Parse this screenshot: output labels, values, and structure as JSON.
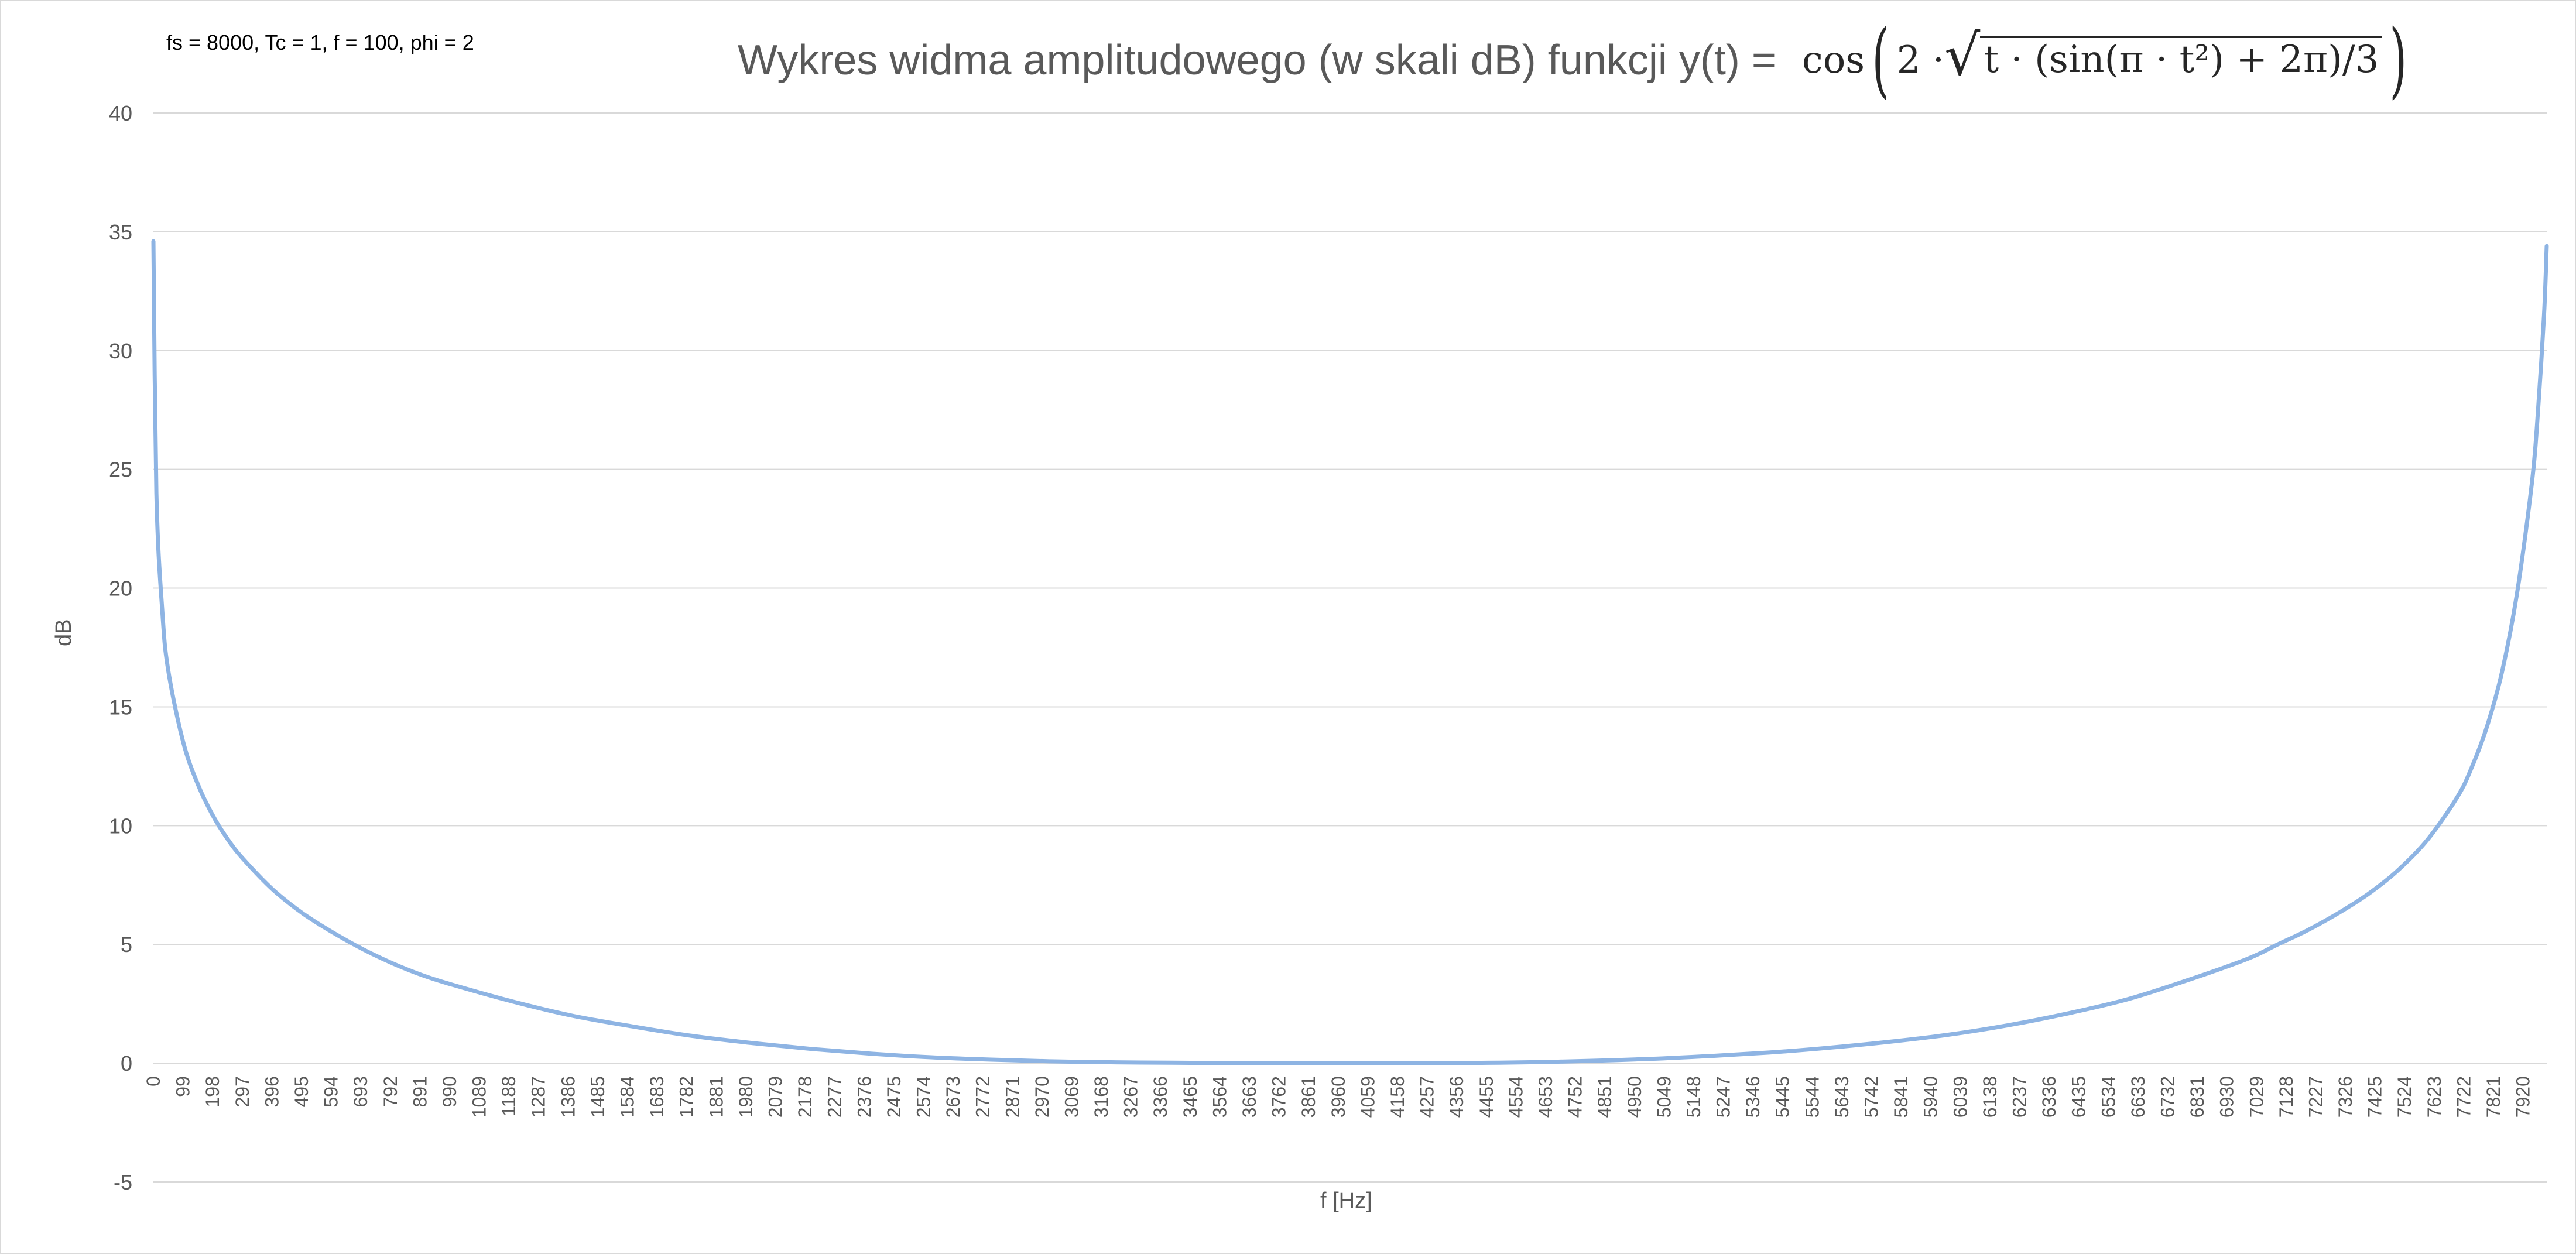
{
  "chart_data": {
    "type": "line",
    "title": "Wykres widma amplitudowego (w skali dB) funkcji y(t) =",
    "formula": {
      "func": "cos",
      "lead": "2 ·",
      "radicand": "t · (sin(π · t²) + 2π)/3"
    },
    "annotation": "fs = 8000, Tc = 1, f = 100, phi = 2",
    "xlabel": "f [Hz]",
    "ylabel": "dB",
    "ylim": [
      -5,
      40
    ],
    "yticks": [
      -5,
      0,
      5,
      10,
      15,
      20,
      25,
      30,
      35,
      40
    ],
    "xlim": [
      0,
      7999
    ],
    "x_ticks": [
      0,
      99,
      198,
      297,
      396,
      495,
      594,
      693,
      792,
      891,
      990,
      1089,
      1188,
      1287,
      1386,
      1485,
      1584,
      1683,
      1782,
      1881,
      1980,
      2079,
      2178,
      2277,
      2376,
      2475,
      2574,
      2673,
      2772,
      2871,
      2970,
      3069,
      3168,
      3267,
      3366,
      3465,
      3564,
      3663,
      3762,
      3861,
      3960,
      4059,
      4158,
      4257,
      4356,
      4455,
      4554,
      4653,
      4752,
      4851,
      4950,
      5049,
      5148,
      5247,
      5346,
      5445,
      5544,
      5643,
      5742,
      5841,
      5940,
      6039,
      6138,
      6237,
      6336,
      6435,
      6534,
      6633,
      6732,
      6831,
      6930,
      7029,
      7128,
      7227,
      7326,
      7425,
      7524,
      7623,
      7722,
      7821,
      7920
    ],
    "grid": true,
    "legend": "none",
    "series": [
      {
        "color": "#8eb4e3",
        "x": [
          0,
          10,
          30,
          50,
          100,
          150,
          200,
          250,
          300,
          400,
          500,
          600,
          700,
          800,
          900,
          1000,
          1200,
          1400,
          1600,
          1800,
          2000,
          2200,
          2400,
          2600,
          2800,
          3000,
          3200,
          3400,
          3600,
          3800,
          3900,
          4000,
          4100,
          4200,
          4400,
          4600,
          4800,
          5000,
          5200,
          5400,
          5600,
          5800,
          6000,
          6200,
          6400,
          6600,
          6800,
          7000,
          7100,
          7200,
          7300,
          7400,
          7500,
          7600,
          7700,
          7750,
          7800,
          7850,
          7900,
          7950,
          7970,
          7990,
          7999
        ],
        "y": [
          34.6,
          24,
          19,
          16.5,
          13.5,
          11.7,
          10.4,
          9.4,
          8.6,
          7.3,
          6.3,
          5.5,
          4.8,
          4.2,
          3.7,
          3.3,
          2.6,
          2.0,
          1.55,
          1.15,
          0.85,
          0.6,
          0.4,
          0.25,
          0.15,
          0.08,
          0.04,
          0.02,
          0.005,
          0.0,
          0.0,
          0.0,
          0.0,
          0.0,
          0.01,
          0.04,
          0.1,
          0.18,
          0.3,
          0.45,
          0.65,
          0.9,
          1.2,
          1.6,
          2.1,
          2.7,
          3.5,
          4.4,
          5.0,
          5.6,
          6.3,
          7.1,
          8.1,
          9.4,
          11.2,
          12.5,
          14.2,
          16.5,
          19.8,
          24.5,
          27.5,
          31.5,
          34.4
        ]
      }
    ]
  }
}
